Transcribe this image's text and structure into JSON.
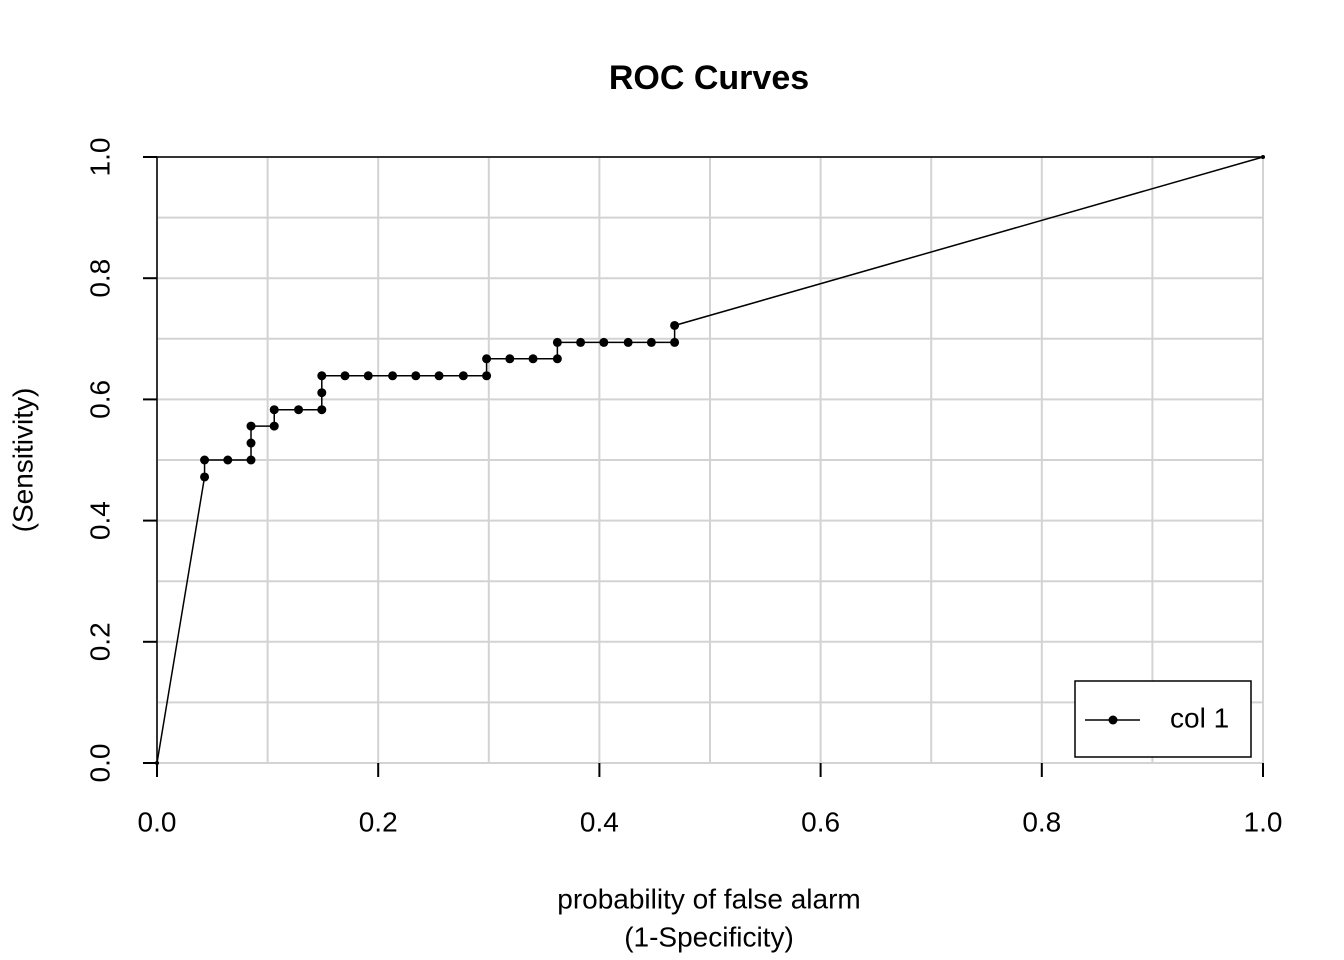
{
  "chart_data": {
    "type": "line",
    "title": "ROC Curves",
    "xlabel": [
      "probability of false alarm",
      "(1-Specificity)"
    ],
    "ylabel": "(Sensitivity)",
    "series": [
      {
        "name": "col 1",
        "color": "#000000",
        "x": [
          0,
          0.043,
          0.043,
          0.064,
          0.085,
          0.085,
          0.085,
          0.106,
          0.106,
          0.128,
          0.149,
          0.149,
          0.149,
          0.17,
          0.191,
          0.213,
          0.234,
          0.255,
          0.277,
          0.298,
          0.298,
          0.319,
          0.34,
          0.362,
          0.362,
          0.383,
          0.404,
          0.426,
          0.447,
          0.468,
          0.468,
          1
        ],
        "values": [
          0,
          0.472,
          0.5,
          0.5,
          0.5,
          0.528,
          0.556,
          0.556,
          0.583,
          0.583,
          0.583,
          0.611,
          0.639,
          0.639,
          0.639,
          0.639,
          0.639,
          0.639,
          0.639,
          0.639,
          0.667,
          0.667,
          0.667,
          0.667,
          0.694,
          0.694,
          0.694,
          0.694,
          0.694,
          0.694,
          0.722,
          1
        ]
      }
    ],
    "xlim": [
      0,
      1
    ],
    "ylim": [
      0,
      1
    ],
    "xticks": [
      {
        "value": 0,
        "label": "0.0"
      },
      0.2,
      0.4,
      0.6,
      0.8,
      {
        "value": 1,
        "label": "1.0"
      }
    ],
    "yticks": [
      {
        "value": 0,
        "label": "0.0"
      },
      0.2,
      0.4,
      0.6,
      0.8,
      {
        "value": 1,
        "label": "1.0"
      }
    ],
    "xgrid": [
      0,
      0.1,
      0.2,
      0.3,
      0.4,
      0.5,
      0.6,
      0.7,
      0.8,
      0.9,
      1
    ],
    "ygrid": [
      0,
      0.1,
      0.2,
      0.3,
      0.4,
      0.5,
      0.6,
      0.7,
      0.8,
      0.9,
      1
    ],
    "grid": true,
    "legend": "bottom-right"
  }
}
